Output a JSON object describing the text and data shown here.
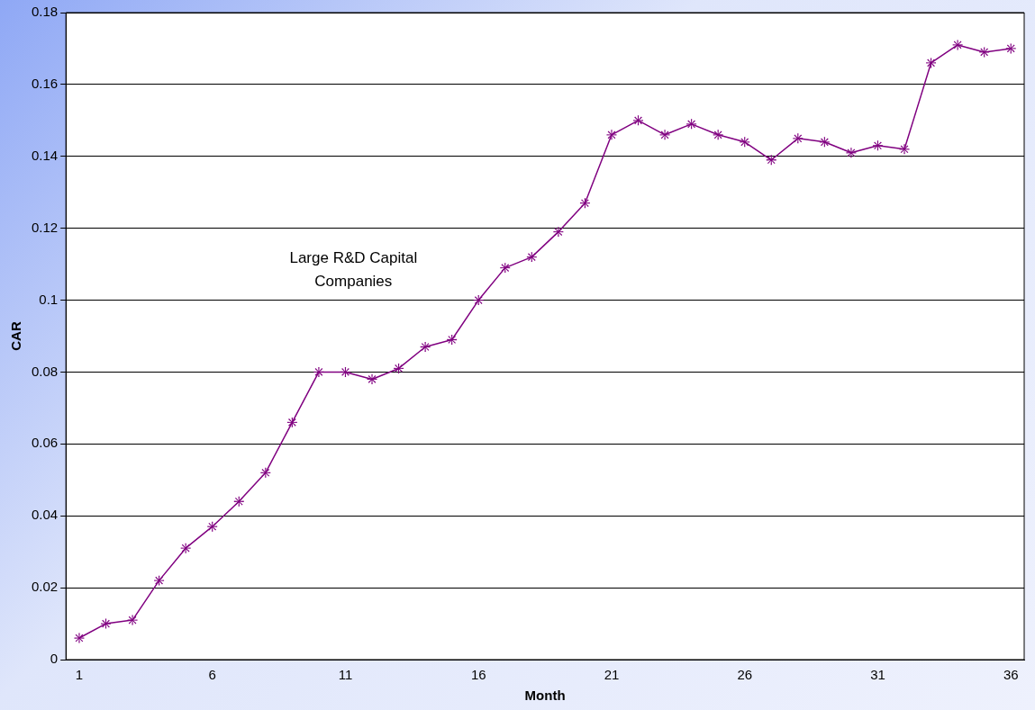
{
  "chart_data": {
    "type": "line",
    "xlabel": "Month",
    "ylabel": "CAR",
    "categories": [
      "1",
      null,
      null,
      null,
      null,
      "6",
      null,
      null,
      null,
      null,
      "11",
      null,
      null,
      null,
      null,
      "16",
      null,
      null,
      null,
      null,
      "21",
      null,
      null,
      null,
      null,
      "26",
      null,
      null,
      null,
      null,
      "31",
      null,
      null,
      null,
      null,
      "36"
    ],
    "series": [
      {
        "color": "#800080",
        "values": [
          0.006,
          0.01,
          0.011,
          0.022,
          0.031,
          0.037,
          0.044,
          0.052,
          0.066,
          0.08,
          0.08,
          0.078,
          0.081,
          0.087,
          0.089,
          0.1,
          0.109,
          0.112,
          0.119,
          0.127,
          0.146,
          0.15,
          0.146,
          0.149,
          0.146,
          0.144,
          0.139,
          0.145,
          0.144,
          0.141,
          0.143,
          0.142,
          0.166,
          0.171,
          0.169,
          0.17
        ]
      }
    ],
    "ylim": [
      0,
      0.18
    ],
    "yticks": [
      0,
      0.02,
      0.04,
      0.06,
      0.08,
      0.1,
      0.12,
      0.14,
      0.16,
      0.18
    ],
    "grid": "y",
    "legend": false,
    "marker": "star",
    "line_style": "solid",
    "annotations": [
      "Large R&D Capital Companies"
    ]
  }
}
